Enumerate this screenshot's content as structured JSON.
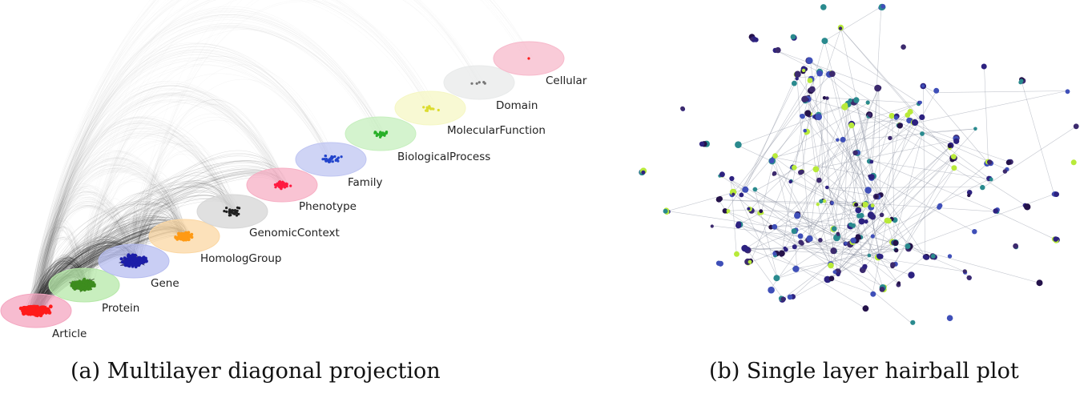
{
  "panels": {
    "a": {
      "caption": "(a) Multilayer diagonal projection",
      "layers": [
        {
          "name": "Article",
          "color": "#f4a6c0",
          "node_color": "#ff1a1a",
          "nodes": 260
        },
        {
          "name": "Protein",
          "color": "#b6e8a8",
          "node_color": "#3d8c1e",
          "nodes": 160
        },
        {
          "name": "Gene",
          "color": "#b7bdf0",
          "node_color": "#1c1ea8",
          "nodes": 160
        },
        {
          "name": "HomologGroup",
          "color": "#fbd7a3",
          "node_color": "#ff9a14",
          "nodes": 110
        },
        {
          "name": "GenomicContext",
          "color": "#d6d6d6",
          "node_color": "#202020",
          "nodes": 30
        },
        {
          "name": "Phenotype",
          "color": "#f7afc4",
          "node_color": "#ff1a40",
          "nodes": 40
        },
        {
          "name": "Family",
          "color": "#bfc5f2",
          "node_color": "#2244cc",
          "nodes": 30
        },
        {
          "name": "BiologicalProcess",
          "color": "#c6efbe",
          "node_color": "#28b028",
          "nodes": 22
        },
        {
          "name": "MolecularFunction",
          "color": "#f5f7c4",
          "node_color": "#dcdc30",
          "nodes": 14
        },
        {
          "name": "Domain",
          "color": "#e8eaea",
          "node_color": "#777777",
          "nodes": 5
        },
        {
          "name": "Cellular",
          "color": "#f7b9cb",
          "node_color": "#ff1a1a",
          "nodes": 1
        }
      ]
    },
    "b": {
      "caption": "(b) Single layer hairball plot",
      "node_colors": [
        "#3c2a6e",
        "#2d2280",
        "#3f4fb8",
        "#b8ea3a",
        "#2a8a8e",
        "#24124a"
      ]
    }
  }
}
